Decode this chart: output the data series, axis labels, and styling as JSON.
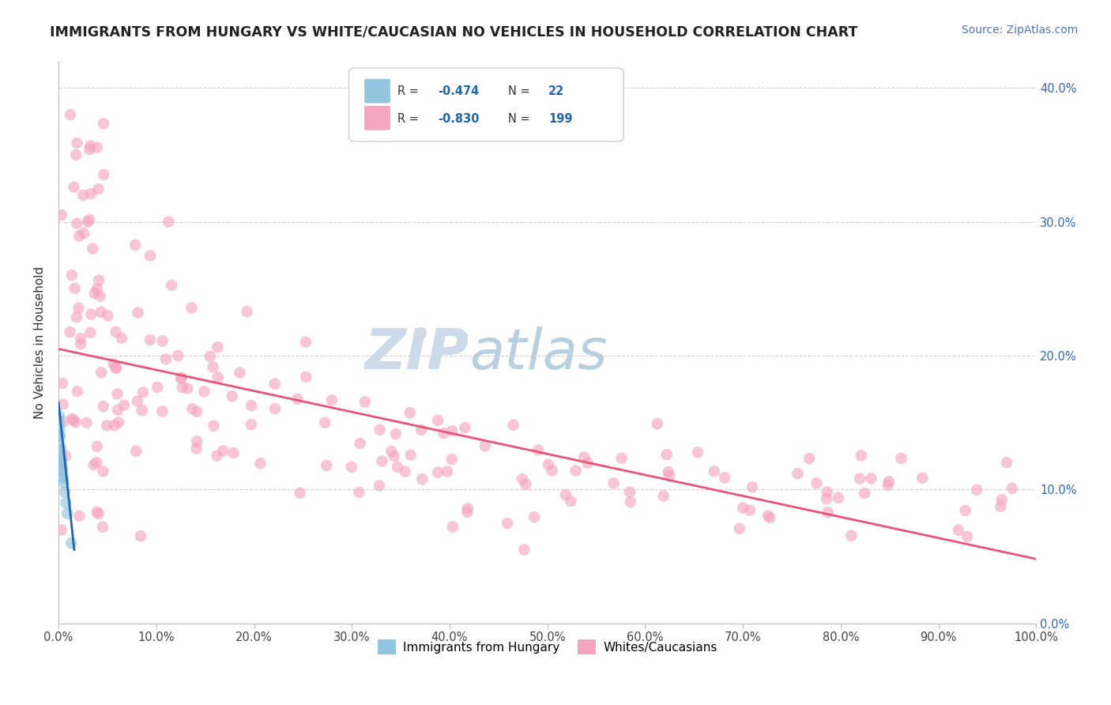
{
  "title": "IMMIGRANTS FROM HUNGARY VS WHITE/CAUCASIAN NO VEHICLES IN HOUSEHOLD CORRELATION CHART",
  "source": "Source: ZipAtlas.com",
  "ylabel": "No Vehicles in Household",
  "xlim": [
    0,
    100
  ],
  "ylim": [
    0,
    0.42
  ],
  "watermark_zip": "ZIP",
  "watermark_atlas": "atlas",
  "legend_r1": "-0.474",
  "legend_n1": "22",
  "legend_r2": "-0.830",
  "legend_n2": "199",
  "legend_label1": "Immigrants from Hungary",
  "legend_label2": "Whites/Caucasians",
  "blue_color": "#92c5de",
  "blue_line_color": "#2166ac",
  "pink_color": "#f4a6c0",
  "pink_line_color": "#e8537a",
  "pink_trendline_x": [
    0.0,
    100.0
  ],
  "pink_trendline_y": [
    0.205,
    0.048
  ],
  "blue_trendline_x": [
    0.0,
    1.6
  ],
  "blue_trendline_y": [
    0.165,
    0.055
  ],
  "grid_color": "#cccccc",
  "background_color": "#ffffff",
  "title_fontsize": 12.5,
  "axis_fontsize": 11,
  "tick_fontsize": 10.5,
  "source_fontsize": 10,
  "watermark_zip_fontsize": 52,
  "watermark_atlas_fontsize": 52,
  "watermark_zip_color": "#ccd9e8",
  "watermark_atlas_color": "#b8cfe0",
  "r_color": "#2166ac",
  "legend_text_color": "#333333"
}
